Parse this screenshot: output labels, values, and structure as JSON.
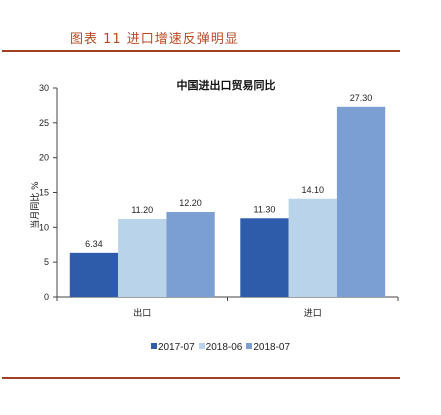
{
  "caption": "图表 11 进口增速反弹明显",
  "chart_data": {
    "type": "bar",
    "title": "中国进出口贸易同比",
    "ylabel": "当月同比 %",
    "xlabel": "",
    "categories": [
      "出口",
      "进口"
    ],
    "ylim": [
      0,
      30
    ],
    "yticks": [
      0,
      5,
      10,
      15,
      20,
      25,
      30
    ],
    "series": [
      {
        "name": "2017-07",
        "values": [
          6.34,
          11.3
        ],
        "labels": [
          "6.34",
          "11.30"
        ],
        "color": "#2f5bab"
      },
      {
        "name": "2018-06",
        "values": [
          11.2,
          14.1
        ],
        "labels": [
          "11.20",
          "14.10"
        ],
        "color": "#b9d3ea"
      },
      {
        "name": "2018-07",
        "values": [
          12.2,
          27.3
        ],
        "labels": [
          "12.20",
          "27.30"
        ],
        "color": "#7b9fd2"
      }
    ],
    "grid": false,
    "legend": "bottom"
  }
}
